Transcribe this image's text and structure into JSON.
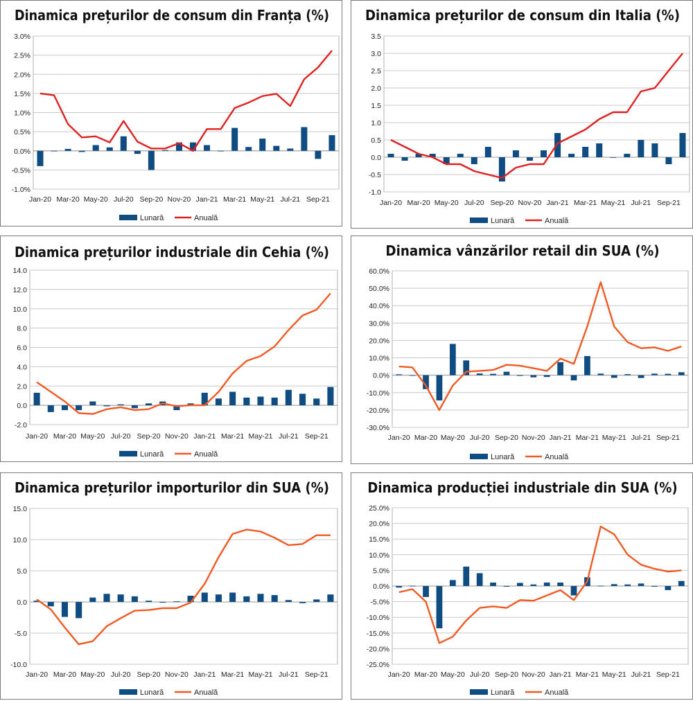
{
  "chart_data": [
    {
      "type": "bar+line",
      "title": "Dinamica prețurilor de consum din Franța (%)",
      "categories": [
        "Jan-20",
        "Feb-20",
        "Mar-20",
        "Apr-20",
        "May-20",
        "Jun-20",
        "Jul-20",
        "Aug-20",
        "Sep-20",
        "Oct-20",
        "Nov-20",
        "Dec-20",
        "Jan-21",
        "Feb-21",
        "Mar-21",
        "Apr-21",
        "May-21",
        "Jun-21",
        "Jul-21",
        "Aug-21",
        "Sep-21",
        "Oct-21"
      ],
      "x_tick_labels": [
        "Jan-20",
        "Mar-20",
        "May-20",
        "Jul-20",
        "Sep-20",
        "Nov-20",
        "Jan-21",
        "Mar-21",
        "May-21",
        "Jul-21",
        "Sep-21"
      ],
      "y_tick_labels": [
        "3.0%",
        "2.5%",
        "2.0%",
        "1.5%",
        "1.0%",
        "0.5%",
        "0.0%",
        "-0.5%",
        "-1.0%"
      ],
      "ylim": [
        -1.0,
        3.0
      ],
      "series": [
        {
          "name": "Lunară",
          "kind": "bar",
          "color": "#0f4c81",
          "values": [
            -0.4,
            0.0,
            0.05,
            -0.03,
            0.15,
            0.09,
            0.38,
            -0.08,
            -0.5,
            0.02,
            0.22,
            0.22,
            0.15,
            0.0,
            0.6,
            0.1,
            0.32,
            0.13,
            0.06,
            0.62,
            -0.21,
            0.41
          ]
        },
        {
          "name": "Anuală",
          "kind": "line",
          "color": "#e02020",
          "values": [
            1.5,
            1.45,
            0.7,
            0.35,
            0.38,
            0.22,
            0.78,
            0.24,
            0.06,
            0.06,
            0.2,
            0.0,
            0.57,
            0.57,
            1.12,
            1.26,
            1.43,
            1.49,
            1.17,
            1.87,
            2.18,
            2.62
          ]
        }
      ]
    },
    {
      "type": "bar+line",
      "title": "Dinamica prețurilor de consum din Italia (%)",
      "categories": [
        "Jan-20",
        "Feb-20",
        "Mar-20",
        "Apr-20",
        "May-20",
        "Jun-20",
        "Jul-20",
        "Aug-20",
        "Sep-20",
        "Oct-20",
        "Nov-20",
        "Dec-20",
        "Jan-21",
        "Feb-21",
        "Mar-21",
        "Apr-21",
        "May-21",
        "Jun-21",
        "Jul-21",
        "Aug-21",
        "Sep-21",
        "Oct-21"
      ],
      "x_tick_labels": [
        "Jan-20",
        "Mar-20",
        "May-20",
        "Jul-20",
        "Sep-20",
        "Nov-20",
        "Jan-21",
        "Mar-21",
        "May-21",
        "Jul-21",
        "Sep-21"
      ],
      "y_tick_labels": [
        "3.5",
        "3.0",
        "2.5",
        "2.0",
        "1.5",
        "1.0",
        "0.5",
        "0.0",
        "-0.5",
        "-1.0"
      ],
      "ylim": [
        -1.0,
        3.5
      ],
      "series": [
        {
          "name": "Lunară",
          "kind": "bar",
          "color": "#0f4c81",
          "values": [
            0.1,
            -0.1,
            0.1,
            0.1,
            -0.2,
            0.1,
            -0.2,
            0.3,
            -0.7,
            0.2,
            -0.1,
            0.2,
            0.7,
            0.1,
            0.3,
            0.4,
            0.0,
            0.1,
            0.5,
            0.4,
            -0.2,
            0.7
          ]
        },
        {
          "name": "Anuală",
          "kind": "line",
          "color": "#e02020",
          "values": [
            0.5,
            0.3,
            0.1,
            0.0,
            -0.2,
            -0.2,
            -0.4,
            -0.5,
            -0.6,
            -0.3,
            -0.2,
            -0.2,
            0.4,
            0.6,
            0.8,
            1.1,
            1.3,
            1.3,
            1.9,
            2.0,
            2.5,
            3.0
          ]
        }
      ]
    },
    {
      "type": "bar+line",
      "title": "Dinamica prețurilor industriale din Cehia (%)",
      "categories": [
        "Jan-20",
        "Feb-20",
        "Mar-20",
        "Apr-20",
        "May-20",
        "Jun-20",
        "Jul-20",
        "Aug-20",
        "Sep-20",
        "Oct-20",
        "Nov-20",
        "Dec-20",
        "Jan-21",
        "Feb-21",
        "Mar-21",
        "Apr-21",
        "May-21",
        "Jun-21",
        "Jul-21",
        "Aug-21",
        "Sep-21",
        "Oct-21"
      ],
      "x_tick_labels": [
        "Jan-20",
        "Mar-20",
        "May-20",
        "Jul-20",
        "Sep-20",
        "Nov-20",
        "Jan-21",
        "Mar-21",
        "May-21",
        "Jul-21",
        "Sep-21"
      ],
      "y_tick_labels": [
        "14.0",
        "12.0",
        "10.0",
        "8.0",
        "6.0",
        "4.0",
        "2.0",
        "0.0",
        "-2.0"
      ],
      "ylim": [
        -2.0,
        14.0
      ],
      "series": [
        {
          "name": "Lunară",
          "kind": "bar",
          "color": "#0f4c81",
          "values": [
            1.3,
            -0.7,
            -0.5,
            -0.5,
            0.4,
            -0.1,
            0.1,
            -0.3,
            0.2,
            0.4,
            -0.5,
            0.2,
            1.3,
            0.7,
            1.4,
            0.8,
            0.9,
            0.8,
            1.6,
            1.2,
            0.7,
            1.9
          ]
        },
        {
          "name": "Anuală",
          "kind": "line",
          "color": "#f05a22",
          "values": [
            2.4,
            1.4,
            0.4,
            -0.8,
            -0.9,
            -0.4,
            -0.2,
            -0.5,
            -0.4,
            0.2,
            -0.1,
            0.0,
            0.0,
            1.4,
            3.3,
            4.6,
            5.1,
            6.1,
            7.8,
            9.3,
            9.9,
            11.6
          ]
        }
      ]
    },
    {
      "type": "bar+line",
      "title": "Dinamica vânzărilor retail din SUA (%)",
      "categories": [
        "Jan-20",
        "Feb-20",
        "Mar-20",
        "Apr-20",
        "May-20",
        "Jun-20",
        "Jul-20",
        "Aug-20",
        "Sep-20",
        "Oct-20",
        "Nov-20",
        "Dec-20",
        "Jan-21",
        "Feb-21",
        "Mar-21",
        "Apr-21",
        "May-21",
        "Jun-21",
        "Jul-21",
        "Aug-21",
        "Sep-21",
        "Oct-21"
      ],
      "x_tick_labels": [
        "Jan-20",
        "Mar-20",
        "May-20",
        "Jul-20",
        "Sep-20",
        "Nov-20",
        "Jan-21",
        "Mar-21",
        "May-21",
        "Jul-21",
        "Sep-21"
      ],
      "y_tick_labels": [
        "60.0%",
        "50.0%",
        "40.0%",
        "30.0%",
        "20.0%",
        "10.0%",
        "0.0%",
        "-10.0%",
        "-20.0%",
        "-30.0%"
      ],
      "ylim": [
        -30.0,
        60.0
      ],
      "series": [
        {
          "name": "Lunară",
          "kind": "bar",
          "color": "#0f4c81",
          "values": [
            0.5,
            0.0,
            -8.0,
            -14.5,
            18.0,
            8.5,
            1.0,
            0.8,
            2.0,
            -0.2,
            -1.2,
            -1.0,
            7.5,
            -3.0,
            11.0,
            0.9,
            -1.5,
            0.6,
            -1.6,
            0.9,
            0.8,
            1.7
          ]
        },
        {
          "name": "Anuală",
          "kind": "line",
          "color": "#f05a22",
          "values": [
            5.0,
            4.5,
            -6.0,
            -20.0,
            -6.0,
            2.0,
            2.5,
            3.0,
            6.0,
            5.5,
            4.0,
            2.5,
            9.5,
            6.5,
            28.0,
            53.5,
            28.0,
            19.0,
            15.5,
            16.0,
            14.0,
            16.5
          ]
        }
      ]
    },
    {
      "type": "bar+line",
      "title": "Dinamica prețurilor importurilor din SUA (%)",
      "categories": [
        "Jan-20",
        "Feb-20",
        "Mar-20",
        "Apr-20",
        "May-20",
        "Jun-20",
        "Jul-20",
        "Aug-20",
        "Sep-20",
        "Oct-20",
        "Nov-20",
        "Dec-20",
        "Jan-21",
        "Feb-21",
        "Mar-21",
        "Apr-21",
        "May-21",
        "Jun-21",
        "Jul-21",
        "Aug-21",
        "Sep-21",
        "Oct-21"
      ],
      "x_tick_labels": [
        "Jan-20",
        "Mar-20",
        "May-20",
        "Jul-20",
        "Sep-20",
        "Nov-20",
        "Jan-21",
        "Mar-21",
        "May-21",
        "Jul-21",
        "Sep-21"
      ],
      "y_tick_labels": [
        "15.0",
        "10.0",
        "5.0",
        "0.0",
        "-5.0",
        "-10.0"
      ],
      "ylim": [
        -10.0,
        15.0
      ],
      "series": [
        {
          "name": "Lunară",
          "kind": "bar",
          "color": "#0f4c81",
          "values": [
            0.2,
            -0.7,
            -2.4,
            -2.6,
            0.7,
            1.3,
            1.2,
            0.9,
            0.2,
            -0.1,
            0.1,
            1.0,
            1.5,
            1.2,
            1.5,
            0.9,
            1.3,
            1.1,
            0.3,
            -0.2,
            0.4,
            1.2
          ]
        },
        {
          "name": "Anuală",
          "kind": "line",
          "color": "#f05a22",
          "values": [
            0.4,
            -1.2,
            -4.1,
            -6.8,
            -6.3,
            -3.9,
            -2.6,
            -1.4,
            -1.3,
            -1.0,
            -1.0,
            -0.1,
            2.9,
            7.2,
            10.9,
            11.6,
            11.3,
            10.3,
            9.1,
            9.3,
            10.7,
            10.7
          ]
        }
      ]
    },
    {
      "type": "bar+line",
      "title": "Dinamica producției industriale din SUA (%)",
      "categories": [
        "Jan-20",
        "Feb-20",
        "Mar-20",
        "Apr-20",
        "May-20",
        "Jun-20",
        "Jul-20",
        "Aug-20",
        "Sep-20",
        "Oct-20",
        "Nov-20",
        "Dec-20",
        "Jan-21",
        "Feb-21",
        "Mar-21",
        "Apr-21",
        "May-21",
        "Jun-21",
        "Jul-21",
        "Aug-21",
        "Sep-21",
        "Oct-21"
      ],
      "x_tick_labels": [
        "Jan-20",
        "Mar-20",
        "May-20",
        "Jul-20",
        "Sep-20",
        "Nov-20",
        "Jan-21",
        "Mar-21",
        "May-21",
        "Jul-21",
        "Sep-21"
      ],
      "y_tick_labels": [
        "25.0%",
        "20.0%",
        "15.0%",
        "10.0%",
        "5.0%",
        "0.0%",
        "-5.0%",
        "-10.0%",
        "-15.0%",
        "-20.0%",
        "-25.0%"
      ],
      "ylim": [
        -25.0,
        25.0
      ],
      "series": [
        {
          "name": "Lunară",
          "kind": "bar",
          "color": "#0f4c81",
          "values": [
            -0.5,
            0.1,
            -3.5,
            -13.5,
            1.9,
            6.2,
            4.1,
            1.1,
            -0.1,
            1.0,
            0.5,
            1.1,
            1.1,
            -3.0,
            2.8,
            0.1,
            0.6,
            0.5,
            0.8,
            -0.1,
            -1.3,
            1.6
          ]
        },
        {
          "name": "Anuală",
          "kind": "line",
          "color": "#f05a22",
          "values": [
            -2.0,
            -1.0,
            -5.0,
            -18.2,
            -16.2,
            -11.0,
            -7.0,
            -6.5,
            -7.0,
            -4.5,
            -4.7,
            -3.0,
            -1.3,
            -4.5,
            1.5,
            19.0,
            16.5,
            10.0,
            6.8,
            5.5,
            4.6,
            5.0
          ]
        }
      ]
    }
  ]
}
